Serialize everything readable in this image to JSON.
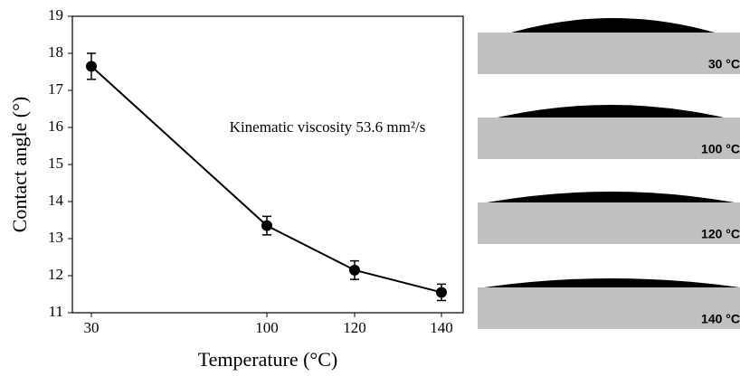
{
  "chart_data": {
    "type": "line",
    "x_label": "Temperature (°C)",
    "y_label": "Contact angle (°)",
    "annotation": "Kinematic viscosity 53.6 mm²/s",
    "categories": [
      "30",
      "100",
      "120",
      "140"
    ],
    "values": [
      17.65,
      13.35,
      12.15,
      11.55
    ],
    "errors": [
      0.35,
      0.25,
      0.25,
      0.22
    ],
    "color": "#000000",
    "ylim": [
      11,
      19
    ],
    "yticks": [
      11,
      12,
      13,
      14,
      15,
      16,
      17,
      18,
      19
    ]
  },
  "images": [
    {
      "label": "30 °C"
    },
    {
      "label": "100 °C"
    },
    {
      "label": "120 °C"
    },
    {
      "label": "140 °C"
    }
  ]
}
